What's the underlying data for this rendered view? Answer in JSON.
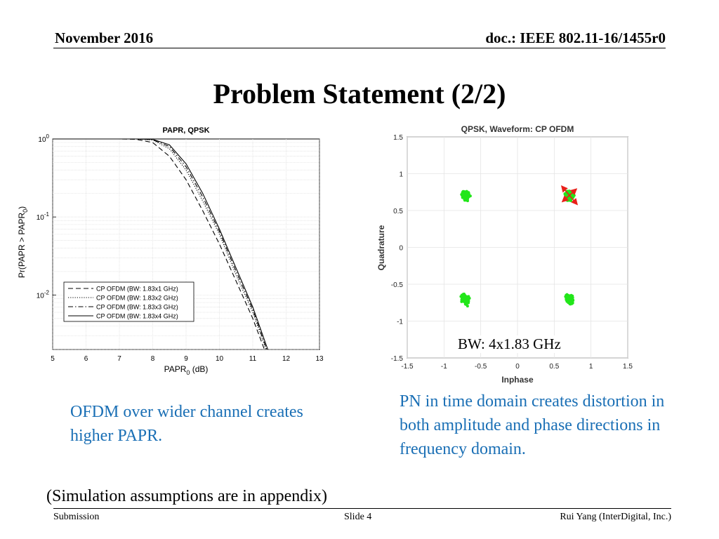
{
  "header": {
    "date": "November 2016",
    "doc": "doc.: IEEE 802.11-16/1455r0"
  },
  "title": "Problem Statement (2/2)",
  "notes": {
    "left": "OFDM over wider channel creates higher PAPR.",
    "right": "PN in time domain creates distortion in both amplitude and phase directions in frequency domain.",
    "sim": "(Simulation assumptions are in appendix)",
    "bw": "BW:  4x1.83 GHz"
  },
  "footer": {
    "submission": "Submission",
    "slide": "Slide 4",
    "author": "Rui Yang (InterDigital, Inc.)"
  },
  "chart_data": [
    {
      "type": "line",
      "title": "PAPR, QPSK",
      "xlabel": "PAPR",
      "xlabel_sub": "0",
      "xlabel_unit": " (dB)",
      "ylabel": "Pr(PAPR > PAPR",
      "ylabel_sub": "0",
      "ylabel_end": ")",
      "xlim": [
        5,
        13
      ],
      "x_ticks": [
        5,
        6,
        7,
        8,
        9,
        10,
        11,
        12,
        13
      ],
      "yscale": "log",
      "ylim": [
        0.002,
        1
      ],
      "y_ticks": [
        {
          "base": "10",
          "exp": "0",
          "value": 1
        },
        {
          "base": "10",
          "exp": "-1",
          "value": 0.1
        },
        {
          "base": "10",
          "exp": "-2",
          "value": 0.01
        }
      ],
      "grid": true,
      "legend_position": "bottom-left",
      "series": [
        {
          "name": "CP OFDM (BW: 1.83x1 GHz)",
          "style": "dashed",
          "x": [
            5,
            7,
            7.5,
            8,
            8.5,
            9,
            9.5,
            10,
            10.5,
            11,
            11.35
          ],
          "y": [
            1,
            1,
            0.99,
            0.9,
            0.6,
            0.3,
            0.12,
            0.045,
            0.015,
            0.005,
            0.002
          ]
        },
        {
          "name": "CP OFDM (BW: 1.83x2 GHz)",
          "style": "dotted",
          "x": [
            5,
            7,
            7.5,
            8,
            8.5,
            9,
            9.5,
            10,
            10.5,
            11,
            11.4
          ],
          "y": [
            1,
            1,
            1,
            0.97,
            0.75,
            0.4,
            0.16,
            0.06,
            0.018,
            0.006,
            0.002
          ]
        },
        {
          "name": "CP OFDM (BW: 1.83x3 GHz)",
          "style": "dashdot",
          "x": [
            5,
            7.5,
            8,
            8.5,
            9,
            9.5,
            10,
            10.5,
            11,
            11.42
          ],
          "y": [
            1,
            1,
            0.98,
            0.8,
            0.44,
            0.18,
            0.065,
            0.02,
            0.0065,
            0.002
          ]
        },
        {
          "name": "CP OFDM (BW: 1.83x4 GHz)",
          "style": "solid",
          "x": [
            5,
            7.5,
            8,
            8.5,
            9,
            9.5,
            10,
            10.5,
            11,
            11.45
          ],
          "y": [
            1,
            1,
            0.99,
            0.84,
            0.48,
            0.2,
            0.07,
            0.022,
            0.007,
            0.002
          ]
        }
      ]
    },
    {
      "type": "scatter",
      "title": "QPSK, Waveform: CP OFDM",
      "xlabel": "Inphase",
      "ylabel": "Quadrature",
      "xlim": [
        -1.5,
        1.5
      ],
      "ylim": [
        -1.5,
        1.5
      ],
      "x_ticks": [
        "-1.5",
        "-1",
        "-0.5",
        "0",
        "0.5",
        "1",
        "1.5"
      ],
      "y_ticks": [
        "1.5",
        "1",
        "0.5",
        "0",
        "-0.5",
        "-1",
        "-1.5"
      ],
      "grid": true,
      "point_color": "#22e61a",
      "arrow_color": "#e8201a",
      "clusters": [
        {
          "x": -0.707,
          "y": 0.707
        },
        {
          "x": 0.707,
          "y": 0.707
        },
        {
          "x": -0.707,
          "y": -0.707
        },
        {
          "x": 0.707,
          "y": -0.707
        }
      ],
      "cluster_spread": {
        "major": 0.14,
        "minor": 0.1,
        "angle_deg": -55
      }
    }
  ]
}
